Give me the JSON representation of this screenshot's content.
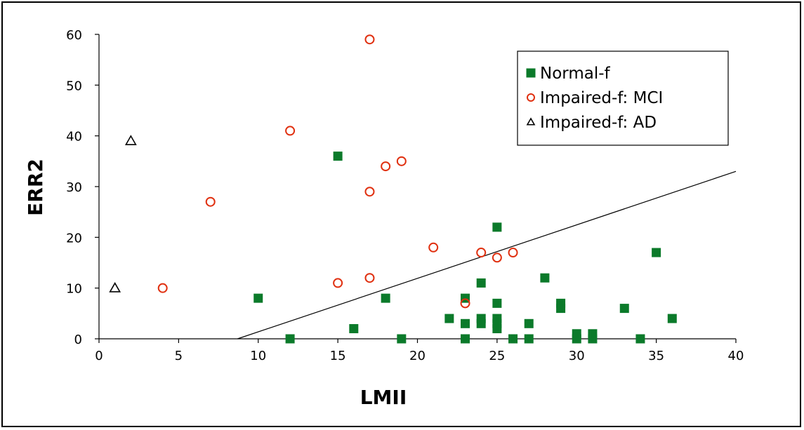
{
  "chart_data": {
    "type": "scatter",
    "xlabel": "LMII",
    "ylabel": "ERR2",
    "xlim": [
      0,
      40
    ],
    "ylim": [
      0,
      60
    ],
    "xticks": [
      "0",
      "5",
      "10",
      "15",
      "20",
      "25",
      "30",
      "35",
      "40"
    ],
    "yticks": [
      "0",
      "10",
      "20",
      "30",
      "40",
      "50",
      "60"
    ],
    "grid": false,
    "legend_position": "top-right",
    "series": [
      {
        "name": "Normal-f",
        "marker": "filled-square",
        "color": "#0b7a2a",
        "points": [
          [
            10,
            8
          ],
          [
            12,
            0
          ],
          [
            15,
            36
          ],
          [
            16,
            2
          ],
          [
            18,
            8
          ],
          [
            19,
            0
          ],
          [
            22,
            4
          ],
          [
            23,
            8
          ],
          [
            23,
            3
          ],
          [
            23,
            0
          ],
          [
            24,
            11
          ],
          [
            24,
            4
          ],
          [
            24,
            3
          ],
          [
            25,
            22
          ],
          [
            25,
            7
          ],
          [
            25,
            4
          ],
          [
            25,
            3
          ],
          [
            25,
            2
          ],
          [
            26,
            0
          ],
          [
            27,
            3
          ],
          [
            27,
            0
          ],
          [
            28,
            12
          ],
          [
            29,
            7
          ],
          [
            29,
            6
          ],
          [
            30,
            1
          ],
          [
            30,
            0
          ],
          [
            31,
            1
          ],
          [
            31,
            0
          ],
          [
            33,
            6
          ],
          [
            34,
            0
          ],
          [
            35,
            17
          ],
          [
            36,
            4
          ]
        ]
      },
      {
        "name": "Impaired-f: MCI",
        "marker": "open-circle",
        "color": "#e03010",
        "points": [
          [
            4,
            10
          ],
          [
            7,
            27
          ],
          [
            12,
            41
          ],
          [
            15,
            11
          ],
          [
            17,
            59
          ],
          [
            17,
            29
          ],
          [
            17,
            12
          ],
          [
            18,
            34
          ],
          [
            19,
            35
          ],
          [
            21,
            18
          ],
          [
            23,
            7
          ],
          [
            24,
            17
          ],
          [
            25,
            16
          ],
          [
            26,
            17
          ]
        ]
      },
      {
        "name": "Impaired-f: AD",
        "marker": "open-triangle",
        "color": "#000000",
        "points": [
          [
            1,
            10
          ],
          [
            2,
            39
          ]
        ]
      }
    ],
    "reference_line": {
      "from": [
        8.7,
        0
      ],
      "to": [
        40,
        33
      ]
    }
  }
}
